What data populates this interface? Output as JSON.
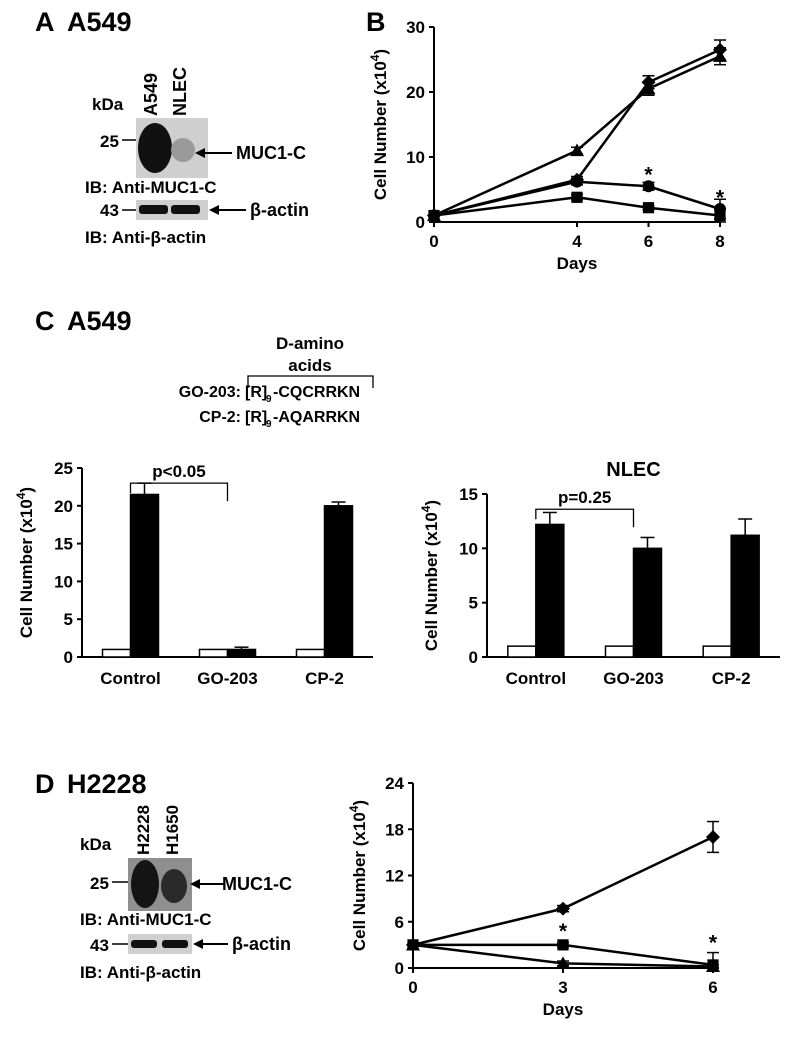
{
  "panelA": {
    "letter": "A",
    "cell_line": "A549",
    "kda": "kDa",
    "lanes": [
      "A549",
      "NLEC"
    ],
    "marker_muc": "25",
    "marker_actin": "43",
    "band_muc": "MUC1-C",
    "band_actin": "β-actin",
    "ib_muc": "IB: Anti-MUC1-C",
    "ib_actin": "IB: Anti-β-actin"
  },
  "panelC": {
    "letter": "C",
    "cell_line": "A549",
    "damino_line1": "D-amino",
    "damino_line2": "acids",
    "go203_label": "GO-203:",
    "go203_prefix": "[R]",
    "go203_sub": "9",
    "go203_seq": "-CQCRRKN",
    "cp2_label": "CP-2:",
    "cp2_prefix": "[R]",
    "cp2_sub": "9",
    "cp2_seq": "-AQARRKN"
  },
  "panelD": {
    "letter": "D",
    "cell_line": "H2228",
    "kda": "kDa",
    "lanes": [
      "H2228",
      "H1650"
    ],
    "marker_muc": "25",
    "marker_actin": "43",
    "band_muc": "MUC1-C",
    "band_actin": "β-actin",
    "ib_muc": "IB: Anti-MUC1-C",
    "ib_actin": "IB: Anti-β-actin"
  },
  "chart_data": [
    {
      "id": "B",
      "panel_letter": "B",
      "type": "line",
      "xlabel": "Days",
      "ylabel": "Cell Number (x10⁴)",
      "x": [
        0,
        4,
        6,
        8
      ],
      "xticks": [
        "0",
        "4",
        "6",
        "8"
      ],
      "ylim": [
        0,
        30
      ],
      "yticks": [
        "0",
        "10",
        "20",
        "30"
      ],
      "grid": false,
      "series": [
        {
          "marker": "diamond",
          "values": [
            1,
            6.5,
            21.5,
            26.5
          ],
          "errors": [
            0,
            0.5,
            1,
            1.5
          ]
        },
        {
          "marker": "triangle",
          "values": [
            1,
            11,
            20.5,
            25.5
          ],
          "errors": [
            0,
            0.5,
            1,
            1.3
          ]
        },
        {
          "marker": "circle",
          "values": [
            1,
            6.2,
            5.5,
            2
          ],
          "errors": [
            0,
            0.5,
            0.6,
            1.5
          ]
        },
        {
          "marker": "square",
          "values": [
            1,
            3.8,
            2.2,
            1
          ],
          "errors": [
            0,
            0.4,
            0.3,
            1
          ]
        }
      ],
      "annotations": [
        {
          "text": "*",
          "x": 6,
          "y": 7.8
        },
        {
          "text": "*",
          "x": 8,
          "y": 4.2
        }
      ]
    },
    {
      "id": "C_A549",
      "type": "bar",
      "categories": [
        "Control",
        "GO-203",
        "CP-2"
      ],
      "ylabel": "Cell Number (x10⁴)",
      "ylim": [
        0,
        25
      ],
      "yticks": [
        "0",
        "5",
        "10",
        "15",
        "20",
        "25"
      ],
      "series": [
        {
          "fill": "white",
          "values": [
            1,
            1,
            1
          ],
          "errors": [
            0,
            0,
            0
          ]
        },
        {
          "fill": "black",
          "values": [
            21.5,
            1,
            20
          ],
          "errors": [
            1.5,
            0.3,
            0.5
          ]
        }
      ],
      "bracket": {
        "text": "p<0.05",
        "from": 0,
        "to": 1,
        "y": 23
      }
    },
    {
      "id": "C_NLEC",
      "type": "bar",
      "title": "NLEC",
      "categories": [
        "Control",
        "GO-203",
        "CP-2"
      ],
      "ylabel": "Cell Number (x10⁴)",
      "ylim": [
        0,
        15
      ],
      "yticks": [
        "0",
        "5",
        "10",
        "15"
      ],
      "series": [
        {
          "fill": "white",
          "values": [
            1,
            1,
            1
          ],
          "errors": [
            0,
            0,
            0
          ]
        },
        {
          "fill": "black",
          "values": [
            12.2,
            10,
            11.2
          ],
          "errors": [
            1.1,
            1,
            1.5
          ]
        }
      ],
      "bracket": {
        "text": "p=0.25",
        "from": 0,
        "to": 1,
        "y": 13.6
      }
    },
    {
      "id": "D",
      "type": "line",
      "xlabel": "Days",
      "ylabel": "Cell Number (x10⁴)",
      "x": [
        0,
        3,
        6
      ],
      "xticks": [
        "0",
        "3",
        "6"
      ],
      "ylim": [
        0,
        24
      ],
      "yticks": [
        "0",
        "6",
        "12",
        "18",
        "24"
      ],
      "grid": false,
      "series": [
        {
          "marker": "diamond",
          "values": [
            3,
            7.7,
            17
          ],
          "errors": [
            0,
            0.4,
            2
          ]
        },
        {
          "marker": "square",
          "values": [
            3,
            3,
            0.4
          ],
          "errors": [
            0,
            0.3,
            1.6
          ]
        },
        {
          "marker": "triangle",
          "values": [
            3,
            0.6,
            0.2
          ],
          "errors": [
            0,
            0.3,
            0.2
          ]
        }
      ],
      "annotations": [
        {
          "text": "*",
          "x": 3,
          "y": 5.2
        },
        {
          "text": "*",
          "x": 6,
          "y": 3.7
        }
      ]
    }
  ]
}
